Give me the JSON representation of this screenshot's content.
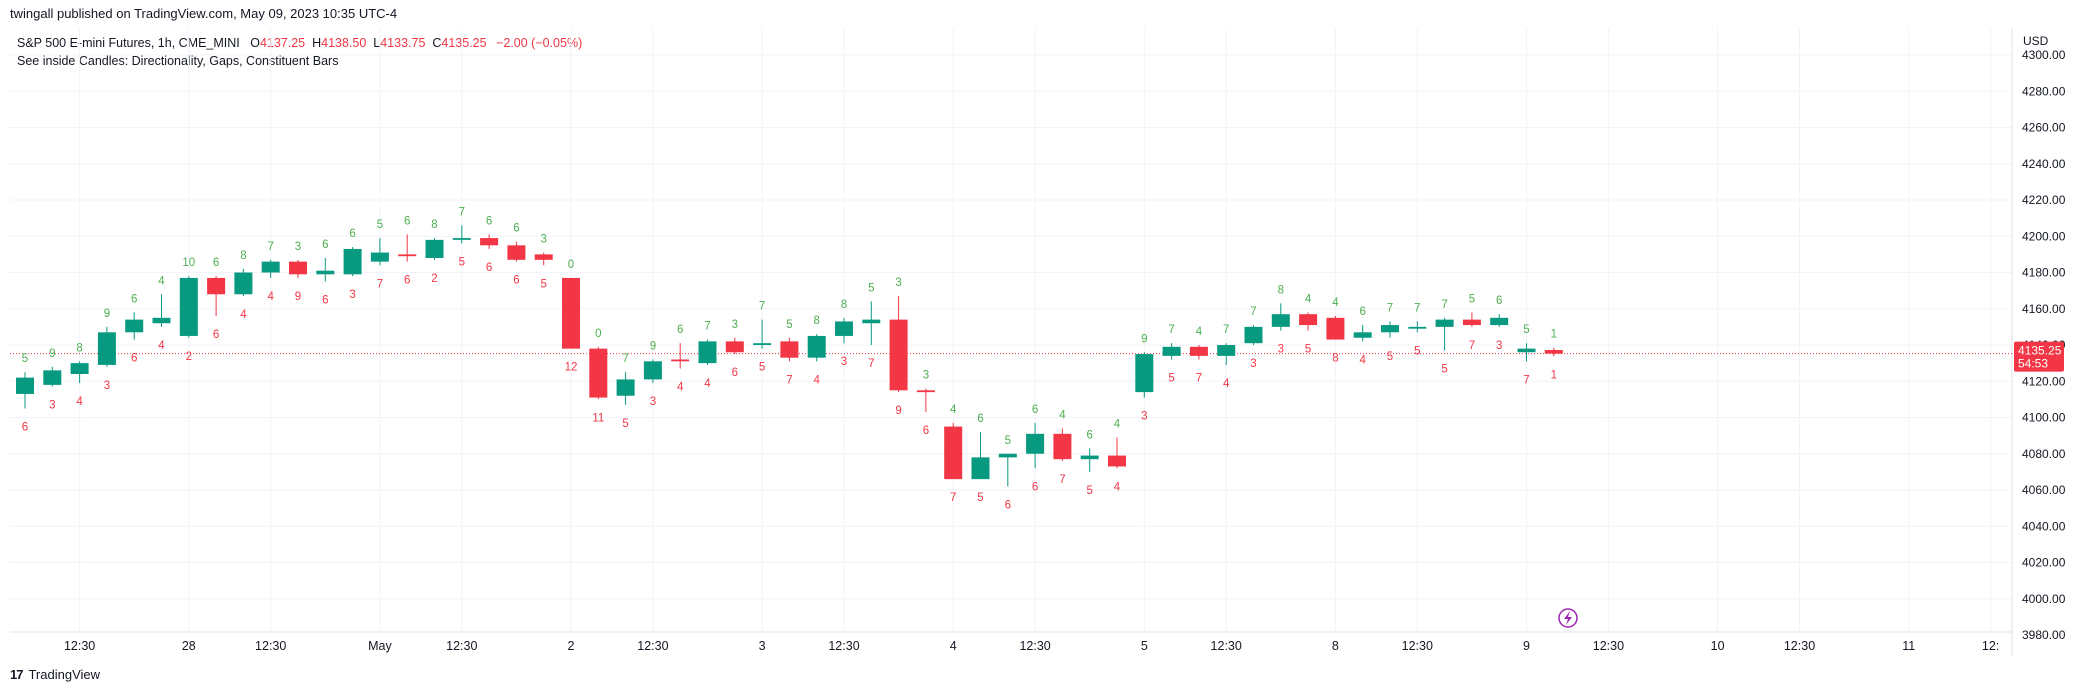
{
  "header": {
    "published_line": "twingall published on TradingView.com, May 09, 2023 10:35 UTC-4",
    "symbol_line": "S&P 500 E-mini Futures, 1h, CME_MINI",
    "open_label": "O",
    "open": "4137.25",
    "high_label": "H",
    "high": "4138.50",
    "low_label": "L",
    "low": "4133.75",
    "close_label": "C",
    "close": "4135.25",
    "change": "−2.00 (−0.05%)",
    "indicator_line": "See inside Candles: Directionality, Gaps, Constituent Bars",
    "currency": "USD"
  },
  "price_badge": {
    "price": "4135.25",
    "countdown": "54:53"
  },
  "footer": {
    "brand": "TradingView",
    "logo_glyph": "17"
  },
  "colors": {
    "up": "#089981",
    "down": "#f23645",
    "up_text": "#4caf50",
    "down_text": "#f23645",
    "grid": "#f0f3fa"
  },
  "chart_data": {
    "type": "candlestick",
    "title": "S&P 500 E-mini Futures, 1h, CME_MINI",
    "ylabel": "USD",
    "ylim": [
      3980,
      4300
    ],
    "y_ticks": [
      3980,
      4000,
      4020,
      4040,
      4060,
      4080,
      4100,
      4120,
      4140,
      4160,
      4180,
      4200,
      4220,
      4240,
      4260,
      4280,
      4300
    ],
    "y_tick_labels": [
      "3980.00",
      "4000.00",
      "4020.00",
      "4040.00",
      "4060.00",
      "4080.00",
      "4100.00",
      "4120.00",
      "4140.00",
      "4160.00",
      "4180.00",
      "4200.00",
      "4220.00",
      "4240.00",
      "4260.00",
      "4280.00",
      "4300.00"
    ],
    "x_ticks": [
      {
        "label": "12:30",
        "bar": 2
      },
      {
        "label": "28",
        "bar": 6
      },
      {
        "label": "12:30",
        "bar": 9
      },
      {
        "label": "May",
        "bar": 13
      },
      {
        "label": "12:30",
        "bar": 16
      },
      {
        "label": "2",
        "bar": 20
      },
      {
        "label": "12:30",
        "bar": 23
      },
      {
        "label": "3",
        "bar": 27
      },
      {
        "label": "12:30",
        "bar": 30
      },
      {
        "label": "4",
        "bar": 34
      },
      {
        "label": "12:30",
        "bar": 37
      },
      {
        "label": "5",
        "bar": 41
      },
      {
        "label": "12:30",
        "bar": 44
      },
      {
        "label": "8",
        "bar": 48
      },
      {
        "label": "12:30",
        "bar": 51
      },
      {
        "label": "9",
        "bar": 55
      },
      {
        "label": "12:30",
        "bar": 58
      },
      {
        "label": "10",
        "bar": 62
      },
      {
        "label": "12:30",
        "bar": 65
      },
      {
        "label": "11",
        "bar": 69
      },
      {
        "label": "12:",
        "bar": 72
      }
    ],
    "last_price": 4135.25,
    "candles": [
      {
        "o": 4113,
        "h": 4125,
        "l": 4105,
        "c": 4122,
        "up": "5",
        "dn": "6"
      },
      {
        "o": 4118,
        "h": 4128,
        "l": 4117,
        "c": 4126,
        "up": "9",
        "dn": "3"
      },
      {
        "o": 4124,
        "h": 4131,
        "l": 4119,
        "c": 4130,
        "up": "8",
        "dn": "4"
      },
      {
        "o": 4129,
        "h": 4150,
        "l": 4128,
        "c": 4147,
        "up": "9",
        "dn": "3"
      },
      {
        "o": 4147,
        "h": 4158,
        "l": 4143,
        "c": 4154,
        "up": "6",
        "dn": "6"
      },
      {
        "o": 4152,
        "h": 4168,
        "l": 4150,
        "c": 4155,
        "up": "4",
        "dn": "4"
      },
      {
        "o": 4145,
        "h": 4178,
        "l": 4144,
        "c": 4177,
        "up": "10",
        "dn": "2"
      },
      {
        "o": 4177,
        "h": 4178,
        "l": 4156,
        "c": 4168,
        "up": "6",
        "dn": "6"
      },
      {
        "o": 4168,
        "h": 4182,
        "l": 4167,
        "c": 4180,
        "up": "8",
        "dn": "4"
      },
      {
        "o": 4180,
        "h": 4187,
        "l": 4177,
        "c": 4186,
        "up": "7",
        "dn": "4"
      },
      {
        "o": 4186,
        "h": 4187,
        "l": 4177,
        "c": 4179,
        "up": "3",
        "dn": "9"
      },
      {
        "o": 4179,
        "h": 4188,
        "l": 4175,
        "c": 4181,
        "up": "6",
        "dn": "6"
      },
      {
        "o": 4179,
        "h": 4194,
        "l": 4178,
        "c": 4193,
        "up": "6",
        "dn": "3"
      },
      {
        "o": 4186,
        "h": 4199,
        "l": 4184,
        "c": 4191,
        "up": "5",
        "dn": "7"
      },
      {
        "o": 4190,
        "h": 4201,
        "l": 4186,
        "c": 4189,
        "up": "6",
        "dn": "6"
      },
      {
        "o": 4188,
        "h": 4199,
        "l": 4187,
        "c": 4198,
        "up": "8",
        "dn": "2"
      },
      {
        "o": 4198,
        "h": 4206,
        "l": 4196,
        "c": 4199,
        "up": "7",
        "dn": "5"
      },
      {
        "o": 4199,
        "h": 4201,
        "l": 4193,
        "c": 4195,
        "up": "6",
        "dn": "6"
      },
      {
        "o": 4195,
        "h": 4197,
        "l": 4186,
        "c": 4187,
        "up": "6",
        "dn": "6"
      },
      {
        "o": 4190,
        "h": 4191,
        "l": 4184,
        "c": 4187,
        "up": "3",
        "dn": "5"
      },
      {
        "o": 4177,
        "h": 4177,
        "l": 4138,
        "c": 4138,
        "up": "0",
        "dn": "12"
      },
      {
        "o": 4138,
        "h": 4139,
        "l": 4110,
        "c": 4111,
        "up": "0",
        "dn": "11"
      },
      {
        "o": 4112,
        "h": 4125,
        "l": 4107,
        "c": 4121,
        "up": "7",
        "dn": "5"
      },
      {
        "o": 4121,
        "h": 4132,
        "l": 4119,
        "c": 4131,
        "up": "9",
        "dn": "3"
      },
      {
        "o": 4132,
        "h": 4141,
        "l": 4127,
        "c": 4131,
        "up": "6",
        "dn": "4"
      },
      {
        "o": 4130,
        "h": 4143,
        "l": 4129,
        "c": 4142,
        "up": "7",
        "dn": "4"
      },
      {
        "o": 4142,
        "h": 4144,
        "l": 4135,
        "c": 4136,
        "up": "3",
        "dn": "6"
      },
      {
        "o": 4140,
        "h": 4154,
        "l": 4138,
        "c": 4141,
        "up": "7",
        "dn": "5"
      },
      {
        "o": 4142,
        "h": 4144,
        "l": 4131,
        "c": 4133,
        "up": "5",
        "dn": "7"
      },
      {
        "o": 4133,
        "h": 4146,
        "l": 4131,
        "c": 4145,
        "up": "8",
        "dn": "4"
      },
      {
        "o": 4145,
        "h": 4155,
        "l": 4141,
        "c": 4153,
        "up": "8",
        "dn": "3"
      },
      {
        "o": 4152,
        "h": 4164,
        "l": 4140,
        "c": 4154,
        "up": "5",
        "dn": "7"
      },
      {
        "o": 4154,
        "h": 4167,
        "l": 4114,
        "c": 4115,
        "up": "3",
        "dn": "9"
      },
      {
        "o": 4115,
        "h": 4116,
        "l": 4103,
        "c": 4114,
        "up": "3",
        "dn": "6"
      },
      {
        "o": 4095,
        "h": 4097,
        "l": 4066,
        "c": 4066,
        "up": "4",
        "dn": "7"
      },
      {
        "o": 4066,
        "h": 4092,
        "l": 4066,
        "c": 4078,
        "up": "6",
        "dn": "5"
      },
      {
        "o": 4078,
        "h": 4080,
        "l": 4062,
        "c": 4080,
        "up": "5",
        "dn": "6"
      },
      {
        "o": 4080,
        "h": 4097,
        "l": 4072,
        "c": 4091,
        "up": "6",
        "dn": "6"
      },
      {
        "o": 4091,
        "h": 4094,
        "l": 4076,
        "c": 4077,
        "up": "4",
        "dn": "7"
      },
      {
        "o": 4077,
        "h": 4083,
        "l": 4070,
        "c": 4079,
        "up": "6",
        "dn": "5"
      },
      {
        "o": 4079,
        "h": 4089,
        "l": 4072,
        "c": 4073,
        "up": "4",
        "dn": "4"
      },
      {
        "o": 4114,
        "h": 4136,
        "l": 4111,
        "c": 4135,
        "up": "9",
        "dn": "3"
      },
      {
        "o": 4134,
        "h": 4141,
        "l": 4132,
        "c": 4139,
        "up": "7",
        "dn": "5"
      },
      {
        "o": 4139,
        "h": 4140,
        "l": 4132,
        "c": 4134,
        "up": "4",
        "dn": "7"
      },
      {
        "o": 4134,
        "h": 4141,
        "l": 4129,
        "c": 4140,
        "up": "7",
        "dn": "4"
      },
      {
        "o": 4141,
        "h": 4151,
        "l": 4140,
        "c": 4150,
        "up": "7",
        "dn": "3"
      },
      {
        "o": 4150,
        "h": 4163,
        "l": 4148,
        "c": 4157,
        "up": "8",
        "dn": "3"
      },
      {
        "o": 4157,
        "h": 4158,
        "l": 4148,
        "c": 4151,
        "up": "4",
        "dn": "5"
      },
      {
        "o": 4155,
        "h": 4156,
        "l": 4143,
        "c": 4143,
        "up": "4",
        "dn": "8"
      },
      {
        "o": 4144,
        "h": 4151,
        "l": 4142,
        "c": 4147,
        "up": "6",
        "dn": "4"
      },
      {
        "o": 4147,
        "h": 4153,
        "l": 4144,
        "c": 4151,
        "up": "7",
        "dn": "5"
      },
      {
        "o": 4149,
        "h": 4153,
        "l": 4147,
        "c": 4150,
        "up": "7",
        "dn": "5"
      },
      {
        "o": 4150,
        "h": 4155,
        "l": 4137,
        "c": 4154,
        "up": "7",
        "dn": "5"
      },
      {
        "o": 4154,
        "h": 4158,
        "l": 4150,
        "c": 4151,
        "up": "5",
        "dn": "7"
      },
      {
        "o": 4151,
        "h": 4157,
        "l": 4150,
        "c": 4155,
        "up": "6",
        "dn": "3"
      },
      {
        "o": 4136,
        "h": 4141,
        "l": 4131,
        "c": 4138,
        "up": "5",
        "dn": "7"
      },
      {
        "o": 4137.25,
        "h": 4138.5,
        "l": 4133.75,
        "c": 4135.25,
        "up": "1",
        "dn": "1"
      }
    ]
  }
}
